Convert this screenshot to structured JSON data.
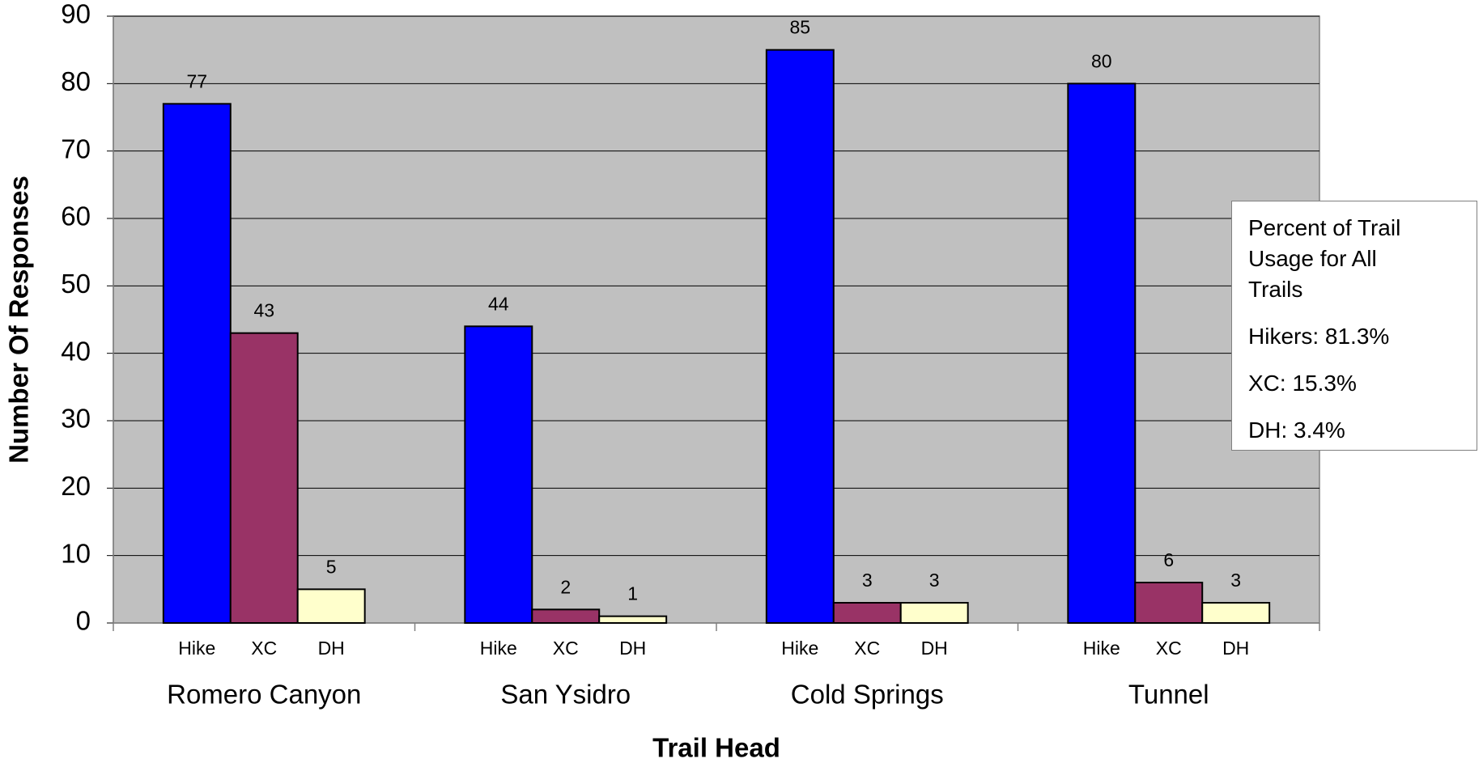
{
  "chart_data": {
    "type": "bar",
    "categories": [
      "Romero Canyon",
      "San Ysidro",
      "Cold Springs",
      "Tunnel"
    ],
    "series": [
      {
        "name": "Hike",
        "color": "#0000ff",
        "values": [
          77,
          44,
          85,
          80
        ]
      },
      {
        "name": "XC",
        "color": "#993366",
        "values": [
          43,
          2,
          3,
          6
        ]
      },
      {
        "name": "DH",
        "color": "#ffffcc",
        "values": [
          5,
          1,
          3,
          3
        ]
      }
    ],
    "xlabel": "Trail Head",
    "ylabel": "Number Of Responses",
    "ylim": [
      0,
      90
    ],
    "yticks": [
      0,
      10,
      20,
      30,
      40,
      50,
      60,
      70,
      80,
      90
    ],
    "grid": true,
    "plot_background": "#c0c0c0",
    "annotation": [
      "Percent of Trail Usage for All Trails",
      "Hikers: 81.3%",
      "XC: 15.3%",
      "DH: 3.4%"
    ]
  }
}
